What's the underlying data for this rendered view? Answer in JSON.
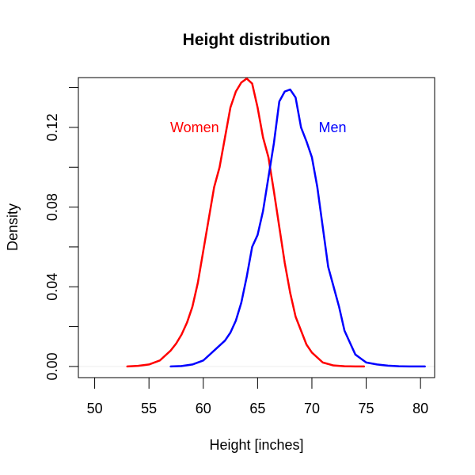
{
  "chart_data": {
    "type": "line",
    "title": "Height distribution",
    "xlabel": "Height [inches]",
    "ylabel": "Density",
    "xlim": [
      48.5,
      81.3
    ],
    "ylim": [
      -0.0056,
      0.145
    ],
    "xticks": [
      50,
      55,
      60,
      65,
      70,
      75,
      80
    ],
    "xtick_labels": [
      "50",
      "55",
      "60",
      "65",
      "70",
      "75",
      "80"
    ],
    "yticks": [
      0,
      0.02,
      0.04,
      0.06,
      0.08,
      0.1,
      0.12,
      0.14
    ],
    "ytick_labels": [
      "0.00",
      "",
      "0.04",
      "",
      "0.08",
      "",
      "0.12",
      ""
    ],
    "grid": false,
    "baseline_y": 0,
    "series": [
      {
        "name": "Women",
        "color": "#ff0000",
        "label_x": 59.2,
        "label_y": 0.12,
        "x": [
          53.0,
          54.0,
          55.0,
          56.0,
          57.0,
          57.5,
          58.0,
          58.5,
          59.0,
          59.5,
          60.0,
          60.5,
          61.0,
          61.5,
          62.0,
          62.5,
          63.0,
          63.5,
          64.0,
          64.5,
          65.0,
          65.5,
          66.0,
          66.5,
          67.0,
          67.5,
          68.0,
          68.5,
          69.0,
          69.5,
          70.0,
          71.0,
          72.0,
          73.0,
          74.0,
          74.8
        ],
        "y": [
          0.0,
          0.0003,
          0.001,
          0.003,
          0.008,
          0.0115,
          0.016,
          0.022,
          0.03,
          0.042,
          0.058,
          0.074,
          0.09,
          0.1,
          0.115,
          0.13,
          0.138,
          0.1425,
          0.1445,
          0.142,
          0.13,
          0.115,
          0.105,
          0.088,
          0.07,
          0.052,
          0.037,
          0.025,
          0.018,
          0.011,
          0.007,
          0.002,
          0.0005,
          0.0001,
          0.0,
          0.0
        ],
        "label_color": "#ff0000"
      },
      {
        "name": "Men",
        "color": "#0000ff",
        "label_x": 71.9,
        "label_y": 0.12,
        "x": [
          57.0,
          58.0,
          59.0,
          60.0,
          61.0,
          62.0,
          62.5,
          63.0,
          63.5,
          64.0,
          64.5,
          65.0,
          65.5,
          66.0,
          66.5,
          67.0,
          67.5,
          68.0,
          68.5,
          69.0,
          69.5,
          70.0,
          70.5,
          71.0,
          71.5,
          72.0,
          72.5,
          73.0,
          73.5,
          74.0,
          74.5,
          75.0,
          76.0,
          77.0,
          78.0,
          79.0,
          80.4
        ],
        "y": [
          0.0,
          0.0002,
          0.001,
          0.003,
          0.008,
          0.013,
          0.017,
          0.023,
          0.032,
          0.045,
          0.06,
          0.066,
          0.078,
          0.095,
          0.112,
          0.133,
          0.138,
          0.139,
          0.135,
          0.12,
          0.113,
          0.105,
          0.09,
          0.07,
          0.05,
          0.04,
          0.03,
          0.018,
          0.012,
          0.006,
          0.004,
          0.002,
          0.001,
          0.0004,
          0.0001,
          0.0,
          0.0
        ],
        "label_color": "#0000ff"
      }
    ],
    "axis_color": "#000000",
    "baseline_color": "#eeeeee"
  }
}
